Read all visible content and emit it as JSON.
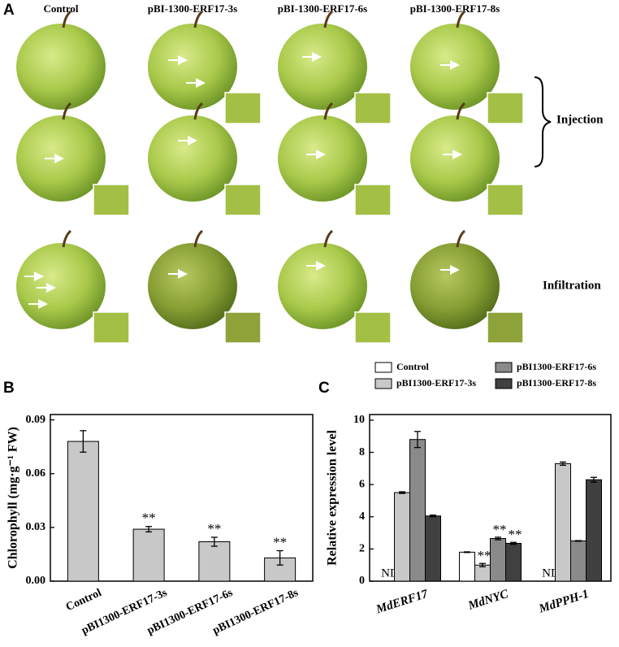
{
  "panel_a": {
    "label": "A",
    "columns": [
      "Control",
      "pBI-1300-ERF17-3s",
      "pBI-1300-ERF17-6s",
      "pBI-1300-ERF17-8s"
    ],
    "rows": [
      "Injection",
      "Infiltration"
    ]
  },
  "chart_data": [
    {
      "type": "bar",
      "panel": "B",
      "ylabel": "Chlorophyll (mg·g⁻¹ FW)",
      "categories": [
        "Control",
        "pBI1300-ERF17-3s",
        "pBI1300-ERF17-6s",
        "pBI1300-ERF17-8s"
      ],
      "values": [
        0.078,
        0.029,
        0.022,
        0.013
      ],
      "errors": [
        0.006,
        0.0015,
        0.0025,
        0.004
      ],
      "significance": [
        null,
        "**",
        "**",
        "**"
      ],
      "color": "#c8c8c8",
      "ylim": [
        0,
        0.093
      ],
      "yticks": [
        {
          "value": 0,
          "label": "0.00"
        },
        0.03,
        0.06,
        0.09
      ]
    },
    {
      "type": "grouped_bar",
      "panel": "C",
      "ylabel": "Relative expression level",
      "categories": [
        "MdERF17",
        "MdNYC",
        "MdPPH-1"
      ],
      "series": [
        {
          "name": "Control",
          "color": "#ffffff",
          "values": [
            null,
            1.8,
            null
          ],
          "errors": [
            null,
            0.02,
            null
          ],
          "value_labels": [
            "ND",
            null,
            "ND"
          ],
          "significance": [
            null,
            null,
            null
          ]
        },
        {
          "name": "pBI1300-ERF17-3s",
          "color": "#c8c8c8",
          "values": [
            5.5,
            1.0,
            7.3
          ],
          "errors": [
            0.05,
            0.1,
            0.1
          ],
          "significance": [
            null,
            "**",
            null
          ]
        },
        {
          "name": "pBI1300-ERF17-6s",
          "color": "#8a8a8a",
          "values": [
            8.8,
            2.65,
            2.5
          ],
          "errors": [
            0.5,
            0.08,
            0.02
          ],
          "significance": [
            null,
            "**",
            null
          ]
        },
        {
          "name": "pBI1300-ERF17-8s",
          "color": "#404040",
          "values": [
            4.05,
            2.35,
            6.3
          ],
          "errors": [
            0.05,
            0.06,
            0.15
          ],
          "significance": [
            null,
            "**",
            null
          ]
        }
      ],
      "ylim": [
        0,
        10.35
      ],
      "yticks": [
        0,
        2,
        4,
        6,
        8,
        10
      ]
    }
  ]
}
